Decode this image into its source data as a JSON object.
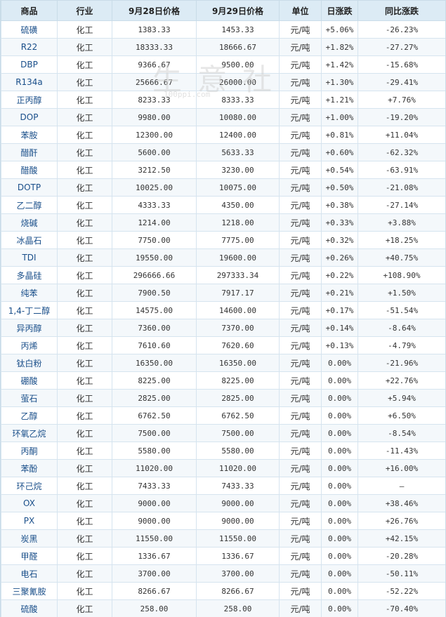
{
  "header": {
    "col_name": "商品",
    "col_industry": "行业",
    "col_price1": "9月28日价格",
    "col_price2": "9月29日价格",
    "col_unit": "单位",
    "col_daily": "日涨跌",
    "col_yoy": "同比涨跌"
  },
  "watermark": {
    "text": "生意社",
    "sub": "100ppi.com"
  },
  "colors": {
    "up": "#e60012",
    "down": "#0a8a2a",
    "header_bg": "#dcebf5",
    "link": "#1a4f8a"
  },
  "rows": [
    {
      "name": "硫磺",
      "industry": "化工",
      "p1": "1383.33",
      "p2": "1453.33",
      "unit": "元/吨",
      "daily": "+5.06%",
      "yoy": "-26.23%"
    },
    {
      "name": "R22",
      "industry": "化工",
      "p1": "18333.33",
      "p2": "18666.67",
      "unit": "元/吨",
      "daily": "+1.82%",
      "yoy": "-27.27%"
    },
    {
      "name": "DBP",
      "industry": "化工",
      "p1": "9366.67",
      "p2": "9500.00",
      "unit": "元/吨",
      "daily": "+1.42%",
      "yoy": "-15.68%"
    },
    {
      "name": "R134a",
      "industry": "化工",
      "p1": "25666.67",
      "p2": "26000.00",
      "unit": "元/吨",
      "daily": "+1.30%",
      "yoy": "-29.41%"
    },
    {
      "name": "正丙醇",
      "industry": "化工",
      "p1": "8233.33",
      "p2": "8333.33",
      "unit": "元/吨",
      "daily": "+1.21%",
      "yoy": "+7.76%"
    },
    {
      "name": "DOP",
      "industry": "化工",
      "p1": "9980.00",
      "p2": "10080.00",
      "unit": "元/吨",
      "daily": "+1.00%",
      "yoy": "-19.20%"
    },
    {
      "name": "苯胺",
      "industry": "化工",
      "p1": "12300.00",
      "p2": "12400.00",
      "unit": "元/吨",
      "daily": "+0.81%",
      "yoy": "+11.04%"
    },
    {
      "name": "醋酐",
      "industry": "化工",
      "p1": "5600.00",
      "p2": "5633.33",
      "unit": "元/吨",
      "daily": "+0.60%",
      "yoy": "-62.32%"
    },
    {
      "name": "醋酸",
      "industry": "化工",
      "p1": "3212.50",
      "p2": "3230.00",
      "unit": "元/吨",
      "daily": "+0.54%",
      "yoy": "-63.91%"
    },
    {
      "name": "DOTP",
      "industry": "化工",
      "p1": "10025.00",
      "p2": "10075.00",
      "unit": "元/吨",
      "daily": "+0.50%",
      "yoy": "-21.08%"
    },
    {
      "name": "乙二醇",
      "industry": "化工",
      "p1": "4333.33",
      "p2": "4350.00",
      "unit": "元/吨",
      "daily": "+0.38%",
      "yoy": "-27.14%"
    },
    {
      "name": "烧碱",
      "industry": "化工",
      "p1": "1214.00",
      "p2": "1218.00",
      "unit": "元/吨",
      "daily": "+0.33%",
      "yoy": "+3.88%"
    },
    {
      "name": "冰晶石",
      "industry": "化工",
      "p1": "7750.00",
      "p2": "7775.00",
      "unit": "元/吨",
      "daily": "+0.32%",
      "yoy": "+18.25%"
    },
    {
      "name": "TDI",
      "industry": "化工",
      "p1": "19550.00",
      "p2": "19600.00",
      "unit": "元/吨",
      "daily": "+0.26%",
      "yoy": "+40.75%"
    },
    {
      "name": "多晶硅",
      "industry": "化工",
      "p1": "296666.66",
      "p2": "297333.34",
      "unit": "元/吨",
      "daily": "+0.22%",
      "yoy": "+108.90%"
    },
    {
      "name": "纯苯",
      "industry": "化工",
      "p1": "7900.50",
      "p2": "7917.17",
      "unit": "元/吨",
      "daily": "+0.21%",
      "yoy": "+1.50%"
    },
    {
      "name": "1,4-丁二醇",
      "industry": "化工",
      "p1": "14575.00",
      "p2": "14600.00",
      "unit": "元/吨",
      "daily": "+0.17%",
      "yoy": "-51.54%"
    },
    {
      "name": "异丙醇",
      "industry": "化工",
      "p1": "7360.00",
      "p2": "7370.00",
      "unit": "元/吨",
      "daily": "+0.14%",
      "yoy": "-8.64%"
    },
    {
      "name": "丙烯",
      "industry": "化工",
      "p1": "7610.60",
      "p2": "7620.60",
      "unit": "元/吨",
      "daily": "+0.13%",
      "yoy": "-4.79%"
    },
    {
      "name": "钛白粉",
      "industry": "化工",
      "p1": "16350.00",
      "p2": "16350.00",
      "unit": "元/吨",
      "daily": "0.00%",
      "yoy": "-21.96%"
    },
    {
      "name": "硼酸",
      "industry": "化工",
      "p1": "8225.00",
      "p2": "8225.00",
      "unit": "元/吨",
      "daily": "0.00%",
      "yoy": "+22.76%"
    },
    {
      "name": "萤石",
      "industry": "化工",
      "p1": "2825.00",
      "p2": "2825.00",
      "unit": "元/吨",
      "daily": "0.00%",
      "yoy": "+5.94%"
    },
    {
      "name": "乙醇",
      "industry": "化工",
      "p1": "6762.50",
      "p2": "6762.50",
      "unit": "元/吨",
      "daily": "0.00%",
      "yoy": "+6.50%"
    },
    {
      "name": "环氧乙烷",
      "industry": "化工",
      "p1": "7500.00",
      "p2": "7500.00",
      "unit": "元/吨",
      "daily": "0.00%",
      "yoy": "-8.54%"
    },
    {
      "name": "丙酮",
      "industry": "化工",
      "p1": "5580.00",
      "p2": "5580.00",
      "unit": "元/吨",
      "daily": "0.00%",
      "yoy": "-11.43%"
    },
    {
      "name": "苯酚",
      "industry": "化工",
      "p1": "11020.00",
      "p2": "11020.00",
      "unit": "元/吨",
      "daily": "0.00%",
      "yoy": "+16.00%"
    },
    {
      "name": "环己烷",
      "industry": "化工",
      "p1": "7433.33",
      "p2": "7433.33",
      "unit": "元/吨",
      "daily": "0.00%",
      "yoy": "—"
    },
    {
      "name": "OX",
      "industry": "化工",
      "p1": "9000.00",
      "p2": "9000.00",
      "unit": "元/吨",
      "daily": "0.00%",
      "yoy": "+38.46%"
    },
    {
      "name": "PX",
      "industry": "化工",
      "p1": "9000.00",
      "p2": "9000.00",
      "unit": "元/吨",
      "daily": "0.00%",
      "yoy": "+26.76%"
    },
    {
      "name": "炭黑",
      "industry": "化工",
      "p1": "11550.00",
      "p2": "11550.00",
      "unit": "元/吨",
      "daily": "0.00%",
      "yoy": "+42.15%"
    },
    {
      "name": "甲醛",
      "industry": "化工",
      "p1": "1336.67",
      "p2": "1336.67",
      "unit": "元/吨",
      "daily": "0.00%",
      "yoy": "-20.28%"
    },
    {
      "name": "电石",
      "industry": "化工",
      "p1": "3700.00",
      "p2": "3700.00",
      "unit": "元/吨",
      "daily": "0.00%",
      "yoy": "-50.11%"
    },
    {
      "name": "三聚氰胺",
      "industry": "化工",
      "p1": "8266.67",
      "p2": "8266.67",
      "unit": "元/吨",
      "daily": "0.00%",
      "yoy": "-52.22%"
    },
    {
      "name": "硫酸",
      "industry": "化工",
      "p1": "258.00",
      "p2": "258.00",
      "unit": "元/吨",
      "daily": "0.00%",
      "yoy": "-70.40%"
    }
  ]
}
